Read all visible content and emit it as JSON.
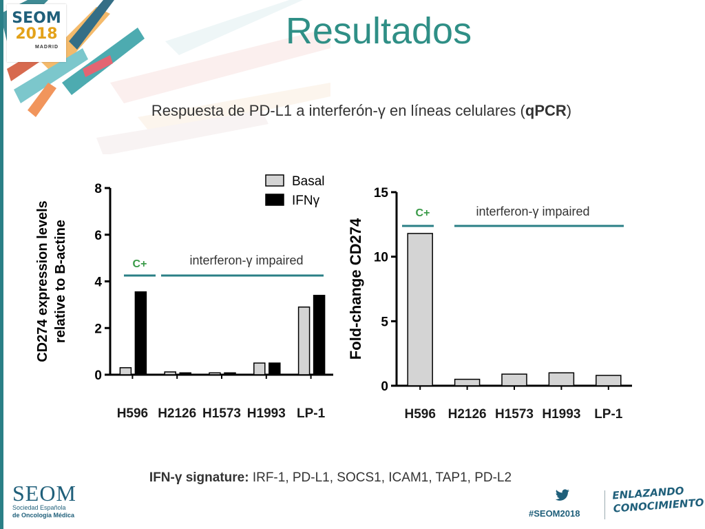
{
  "slide": {
    "title": "Resultados",
    "subtitle_pre": "Respuesta de PD-L1 a interferón-",
    "gamma": "γ",
    "subtitle_post": " en líneas celulares (",
    "subtitle_bold": "qPCR",
    "subtitle_close": ")",
    "signature_label": "IFN-γ signature:",
    "signature_genes": " IRF-1, PD-L1, SOCS1, ICAM1, TAP1, PD-L2"
  },
  "header_logo": {
    "line1": "SEOM",
    "line2": "2018",
    "city": "MADRID"
  },
  "footer": {
    "logo": "SEOM",
    "line1": "Sociedad Española",
    "line2": "de Oncología Médica",
    "hashtag": "#SEOM2018",
    "slogan_line1": "ENLAZANDO",
    "slogan_line2": "CONOCIMIENTO"
  },
  "colors": {
    "teal": "#2a7f86",
    "title": "#2f8f86",
    "green_label": "#3a9a48",
    "navy": "#1f5f7a"
  },
  "chart_data": [
    {
      "type": "bar",
      "ylabel": "CD274 expression levels relative to B-actine",
      "categories": [
        "H596",
        "H2126",
        "H1573",
        "H1993",
        "LP-1"
      ],
      "ylim": [
        0,
        8
      ],
      "yticks": [
        "0",
        "2",
        "4",
        "6",
        "8"
      ],
      "series": [
        {
          "name": "Basal",
          "color": "#d4d4d4",
          "values": [
            0.3,
            0.12,
            0.08,
            0.5,
            2.9
          ]
        },
        {
          "name": "IFNγ",
          "color": "#000000",
          "values": [
            3.55,
            0.08,
            0.08,
            0.5,
            3.4
          ]
        }
      ],
      "legend": "top-right",
      "annotations": {
        "positive_control": "C+",
        "impaired": "interferon-γ impaired"
      }
    },
    {
      "type": "bar",
      "ylabel": "Fold-change CD274",
      "categories": [
        "H596",
        "H2126",
        "H1573",
        "H1993",
        "LP-1"
      ],
      "ylim": [
        0,
        15
      ],
      "yticks": [
        "0",
        "5",
        "10",
        "15"
      ],
      "series": [
        {
          "color": "#d4d4d4",
          "values": [
            11.8,
            0.5,
            0.9,
            1.0,
            0.8
          ]
        }
      ],
      "annotations": {
        "positive_control": "C+",
        "impaired": "interferon-γ impaired"
      }
    }
  ]
}
